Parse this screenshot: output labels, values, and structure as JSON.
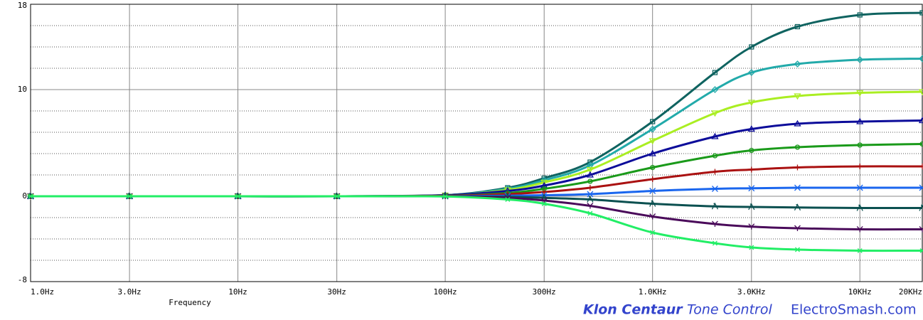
{
  "chart_data": {
    "type": "line",
    "x_label": "Frequency",
    "annotations": [
      "Klon Centaur",
      "Tone Control",
      "ElectroSmash.com"
    ],
    "log_x": true,
    "x": [
      1,
      3,
      10,
      30,
      100,
      200,
      300,
      500,
      1000,
      2000,
      3000,
      5000,
      10000,
      20000
    ],
    "xlim": [
      1,
      20000
    ],
    "xticks": [
      {
        "value": 1,
        "label": "1.0Hz"
      },
      {
        "value": 3,
        "label": "3.0Hz"
      },
      {
        "value": 10,
        "label": "10Hz"
      },
      {
        "value": 30,
        "label": "30Hz"
      },
      {
        "value": 100,
        "label": "100Hz"
      },
      {
        "value": 300,
        "label": "300Hz"
      },
      {
        "value": 1000,
        "label": "1.0KHz"
      },
      {
        "value": 3000,
        "label": "3.0KHz"
      },
      {
        "value": 10000,
        "label": "10KHz"
      },
      {
        "value": 20000,
        "label": "20KHz"
      }
    ],
    "ylim": [
      -8,
      18
    ],
    "yticks": [
      18,
      10,
      0,
      -8
    ],
    "yminor": [
      16,
      14,
      12,
      8,
      6,
      4,
      2,
      -2,
      -4,
      -6
    ],
    "grid": true,
    "series": [
      {
        "color": "#0f6360",
        "values": [
          0,
          0,
          0,
          0,
          0.1,
          0.8,
          1.7,
          3.2,
          7.0,
          11.6,
          14.0,
          15.9,
          17.0,
          17.2
        ]
      },
      {
        "color": "#22aaaa",
        "values": [
          0,
          0,
          0,
          0,
          0.1,
          0.7,
          1.5,
          2.9,
          6.3,
          10.0,
          11.6,
          12.4,
          12.8,
          12.9
        ]
      },
      {
        "color": "#aaee22",
        "values": [
          0,
          0,
          0,
          0,
          0.1,
          0.6,
          1.3,
          2.5,
          5.2,
          7.8,
          8.8,
          9.4,
          9.7,
          9.8
        ]
      },
      {
        "color": "#0c0c9a",
        "values": [
          0,
          0,
          0,
          0,
          0.1,
          0.5,
          1.0,
          2.0,
          4.0,
          5.6,
          6.3,
          6.8,
          7.0,
          7.1
        ]
      },
      {
        "color": "#1a9a1a",
        "values": [
          0,
          0,
          0,
          0,
          0.05,
          0.3,
          0.7,
          1.4,
          2.7,
          3.8,
          4.3,
          4.6,
          4.8,
          4.9
        ]
      },
      {
        "color": "#aa1111",
        "values": [
          0,
          0,
          0,
          0,
          0.03,
          0.2,
          0.4,
          0.8,
          1.6,
          2.3,
          2.5,
          2.7,
          2.8,
          2.8
        ]
      },
      {
        "color": "#1a66ee",
        "values": [
          0,
          0,
          0,
          0,
          0,
          0.05,
          0.1,
          0.2,
          0.5,
          0.7,
          0.75,
          0.8,
          0.8,
          0.8
        ]
      },
      {
        "color": "#0b5050",
        "values": [
          0,
          0,
          0,
          0,
          0,
          -0.05,
          -0.15,
          -0.3,
          -0.7,
          -0.95,
          -1.0,
          -1.05,
          -1.1,
          -1.1
        ]
      },
      {
        "color": "#4a0a5a",
        "values": [
          0,
          0,
          0,
          0,
          0,
          -0.15,
          -0.4,
          -0.9,
          -1.9,
          -2.6,
          -2.85,
          -3.0,
          -3.1,
          -3.1
        ]
      },
      {
        "color": "#22ee66",
        "values": [
          0,
          0,
          0,
          0,
          -0.02,
          -0.3,
          -0.7,
          -1.6,
          -3.4,
          -4.4,
          -4.8,
          -5.0,
          -5.1,
          -5.1
        ]
      }
    ]
  }
}
